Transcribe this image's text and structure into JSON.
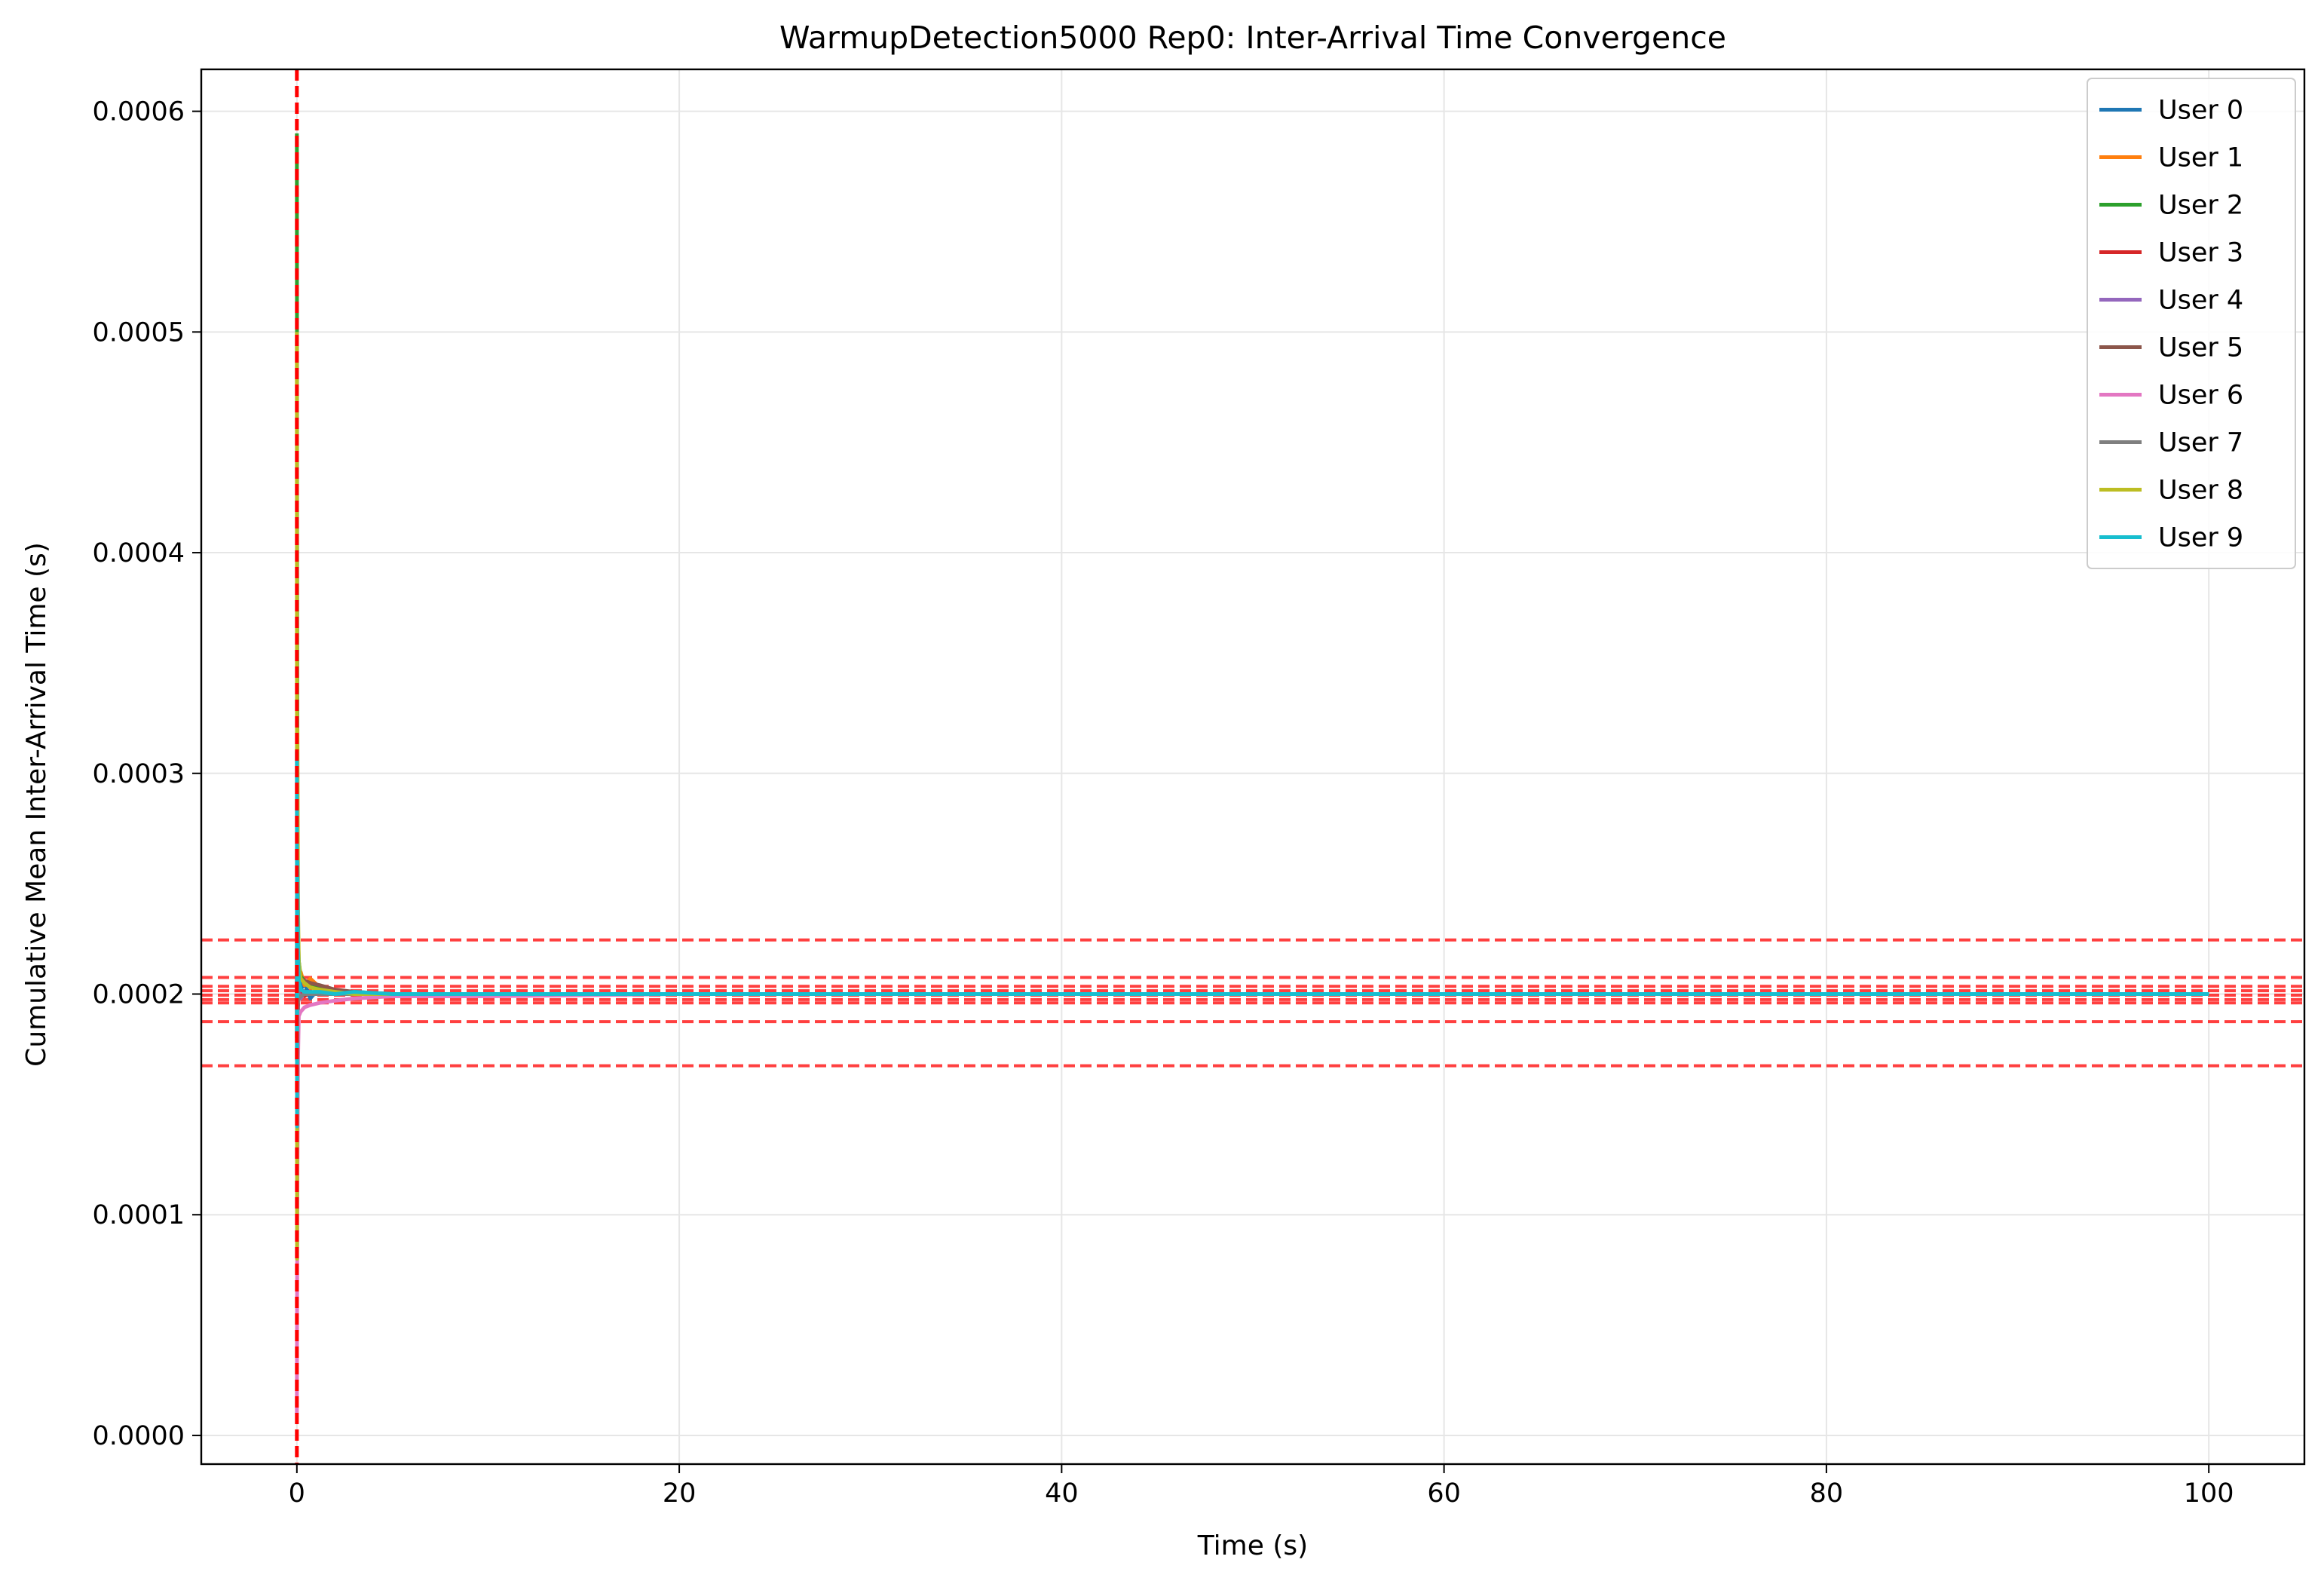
{
  "chart_data": {
    "type": "line",
    "title": "WarmupDetection5000 Rep0: Inter-Arrival Time Convergence",
    "xlabel": "Time (s)",
    "ylabel": "Cumulative Mean Inter-Arrival Time (s)",
    "xlim": [
      -5,
      105
    ],
    "ylim": [
      -1.3e-05,
      0.000619
    ],
    "xticks": [
      {
        "value": 0,
        "label": "0"
      },
      {
        "value": 20,
        "label": "20"
      },
      {
        "value": 40,
        "label": "40"
      },
      {
        "value": 60,
        "label": "60"
      },
      {
        "value": 80,
        "label": "80"
      },
      {
        "value": 100,
        "label": "100"
      }
    ],
    "yticks": [
      {
        "value": 0.0,
        "label": "0.0000"
      },
      {
        "value": 0.0001,
        "label": "0.0001"
      },
      {
        "value": 0.0002,
        "label": "0.0002"
      },
      {
        "value": 0.0003,
        "label": "0.0003"
      },
      {
        "value": 0.0004,
        "label": "0.0004"
      },
      {
        "value": 0.0005,
        "label": "0.0005"
      },
      {
        "value": 0.0006,
        "label": "0.0006"
      }
    ],
    "grid": true,
    "legend_position": "top-right",
    "series": [
      {
        "name": "User 0",
        "color": "#1f77b4",
        "x": [
          0.0,
          0.01,
          0.03,
          0.06,
          0.1,
          0.2,
          0.4,
          0.7,
          1.2,
          2,
          3,
          5,
          10,
          20,
          50,
          100
        ],
        "y": [
          0.00021,
          0.00016,
          0.00024,
          0.00019,
          0.000215,
          0.000202,
          0.000205,
          0.000198,
          0.000203,
          0.0002,
          0.000201,
          0.0002,
          0.0002,
          0.0002,
          0.0002,
          0.0002
        ]
      },
      {
        "name": "User 1",
        "color": "#ff7f0e",
        "x": [
          0.0,
          0.01,
          0.03,
          0.06,
          0.1,
          0.2,
          0.4,
          0.7,
          1.2,
          2,
          3,
          5,
          10,
          20,
          50,
          100
        ],
        "y": [
          0.00019,
          0.00025,
          0.00015,
          0.00022,
          0.000205,
          0.00021,
          0.000204,
          0.000207,
          0.000203,
          0.000202,
          0.0002,
          0.0002,
          0.0002,
          0.0002,
          0.0002,
          0.0002
        ]
      },
      {
        "name": "User 2",
        "color": "#2ca02c",
        "x": [
          0.0,
          0.01,
          0.03,
          0.06,
          0.1,
          0.2,
          0.4,
          0.7,
          1.2,
          2,
          3,
          5,
          10,
          20,
          50,
          100
        ],
        "y": [
          0.00059,
          0.00042,
          0.00027,
          0.00023,
          0.000215,
          0.000208,
          0.000206,
          0.000205,
          0.000203,
          0.000201,
          0.0002,
          0.0002,
          0.0002,
          0.0002,
          0.0002,
          0.0002
        ]
      },
      {
        "name": "User 3",
        "color": "#d62728",
        "x": [
          0.0,
          0.01,
          0.03,
          0.06,
          0.1,
          0.2,
          0.4,
          0.7,
          1.2,
          2,
          3,
          5,
          10,
          20,
          50,
          100
        ],
        "y": [
          0.00022,
          0.00018,
          0.00021,
          0.000195,
          0.000205,
          0.0002,
          0.000199,
          0.000201,
          0.0002,
          0.0002,
          0.0002,
          0.0002,
          0.0002,
          0.0002,
          0.0002,
          0.0002
        ]
      },
      {
        "name": "User 4",
        "color": "#9467bd",
        "x": [
          0.0,
          0.01,
          0.03,
          0.06,
          0.1,
          0.2,
          0.4,
          0.7,
          1.2,
          2,
          3,
          5,
          10,
          20,
          50,
          100
        ],
        "y": [
          0.00018,
          0.00022,
          0.00019,
          0.000205,
          0.0002,
          0.000198,
          0.000201,
          0.0002,
          0.0002,
          0.0002,
          0.0002,
          0.0002,
          0.0002,
          0.0002,
          0.0002,
          0.0002
        ]
      },
      {
        "name": "User 5",
        "color": "#8c564b",
        "x": [
          0.0,
          0.01,
          0.03,
          0.06,
          0.1,
          0.2,
          0.4,
          0.7,
          1.2,
          2,
          3,
          5,
          10,
          20,
          50,
          100
        ],
        "y": [
          0.00017,
          0.00023,
          0.00021,
          0.000212,
          0.000209,
          0.000207,
          0.000206,
          0.000205,
          0.000204,
          0.000202,
          0.000201,
          0.0002,
          0.0002,
          0.0002,
          0.0002,
          0.0002
        ]
      },
      {
        "name": "User 6",
        "color": "#e377c2",
        "x": [
          0.0,
          0.01,
          0.03,
          0.06,
          0.1,
          0.2,
          0.4,
          0.7,
          1.2,
          2,
          3,
          5,
          10,
          20,
          50,
          100
        ],
        "y": [
          1e-05,
          6e-05,
          0.00012,
          0.00017,
          0.00019,
          0.000192,
          0.000194,
          0.000195,
          0.000196,
          0.000197,
          0.000198,
          0.000199,
          0.000199,
          0.0002,
          0.0002,
          0.0002
        ]
      },
      {
        "name": "User 7",
        "color": "#7f7f7f",
        "x": [
          0.0,
          0.01,
          0.03,
          0.06,
          0.1,
          0.2,
          0.4,
          0.7,
          1.2,
          2,
          3,
          5,
          10,
          20,
          50,
          100
        ],
        "y": [
          0.00023,
          0.00017,
          0.00021,
          0.000196,
          0.000198,
          0.000199,
          0.0002,
          0.0002,
          0.0002,
          0.0002,
          0.0002,
          0.0002,
          0.0002,
          0.0002,
          0.0002,
          0.0002
        ]
      },
      {
        "name": "User 8",
        "color": "#bcbd22",
        "x": [
          0.0,
          0.01,
          0.03,
          0.06,
          0.1,
          0.2,
          0.4,
          0.7,
          1.2,
          2,
          3,
          5,
          10,
          20,
          50,
          100
        ],
        "y": [
          0.0005,
          8e-05,
          0.00032,
          0.00024,
          0.000215,
          0.000207,
          0.000205,
          0.000203,
          0.000202,
          0.000201,
          0.0002,
          0.0002,
          0.0002,
          0.0002,
          0.0002,
          0.0002
        ]
      },
      {
        "name": "User 9",
        "color": "#17becf",
        "x": [
          0.0,
          0.01,
          0.03,
          0.06,
          0.1,
          0.2,
          0.4,
          0.7,
          1.2,
          2,
          3,
          5,
          10,
          20,
          50,
          100
        ],
        "y": [
          0.00031,
          0.00014,
          0.00026,
          0.00022,
          0.000206,
          0.000202,
          0.000201,
          0.000201,
          0.000201,
          0.0002,
          0.000201,
          0.0002,
          0.0002,
          0.0002,
          0.0002,
          0.0002
        ]
      }
    ],
    "reference_lines": {
      "color": "#ff0000",
      "style": "dashed",
      "vertical_x": [
        0
      ],
      "horizontal_y": [
        0.0002245,
        0.0002075,
        0.0002035,
        0.0002015,
        0.0001995,
        0.0001975,
        0.000196,
        0.0001875,
        0.0001675
      ]
    }
  }
}
